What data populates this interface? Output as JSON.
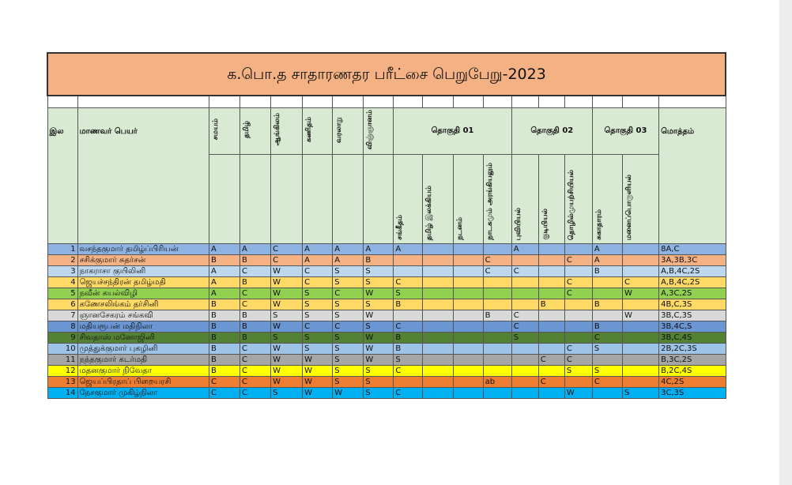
{
  "title": "க.பொ.த சாதாரணதர பரீட்சை பெறுபேறு-2023",
  "headers": {
    "index": "இல",
    "name": "மாணவர் பெயர்",
    "subjects": [
      "சமயம்",
      "தமிழ்",
      "ஆங்கிலம்",
      "கணிதம்",
      "வரலாறு",
      "விஞ்ஞானம்"
    ],
    "group1": "தொகுதி 01",
    "group2": "தொகுதி 02",
    "group3": "தொகுதி 03",
    "total": "மொத்தம்",
    "g1_subjects": [
      "சங்கீதம்",
      "தமிழ் இலக்கியம்",
      "நடனம்",
      "நாடகமும் அரங்கியலும்"
    ],
    "g2_subjects": [
      "புவியியல்",
      "குடியியல்",
      "தொழில்முயற்சியியல்"
    ],
    "g3_subjects": [
      "சுகாதாரம்",
      "மனைப்பொருளியல்"
    ]
  },
  "rows": [
    {
      "no": "1",
      "name": "வசந்தகுமார் தமிழ்ப்பிரியன்",
      "color": "#8db3e2",
      "cells": [
        "A",
        "A",
        "C",
        "A",
        "A",
        "A",
        "A",
        "",
        "",
        "",
        "A",
        "",
        "",
        "A",
        ""
      ],
      "total": "8A,C"
    },
    {
      "no": "2",
      "name": "சசிக்குமார் சுதர்சன்",
      "color": "#f4b183",
      "cells": [
        "B",
        "B",
        "C",
        "A",
        "A",
        "B",
        "",
        "",
        "",
        "C",
        "",
        "",
        "C",
        "A",
        ""
      ],
      "total": "3A,3B,3C"
    },
    {
      "no": "3",
      "name": "நாகராசா குயிலினி",
      "color": "#bdd7ee",
      "cells": [
        "A",
        "C",
        "W",
        "C",
        "S",
        "S",
        "",
        "",
        "",
        "C",
        "C",
        "",
        "",
        "B",
        ""
      ],
      "total": "A,B,4C,2S"
    },
    {
      "no": "4",
      "name": "ஜெயச்சந்திரன் தமிழ்மதி",
      "color": "#ffd966",
      "cells": [
        "A",
        "B",
        "W",
        "C",
        "S",
        "S",
        "C",
        "",
        "",
        "",
        "",
        "",
        "C",
        "",
        "C"
      ],
      "total": "A,B,4C,2S"
    },
    {
      "no": "5",
      "name": "நவீன் கயல்விழி",
      "color": "#92d050",
      "cells": [
        "A",
        "C",
        "W",
        "S",
        "C",
        "W",
        "S",
        "",
        "",
        "",
        "",
        "",
        "C",
        "",
        "W"
      ],
      "total": "A,3C,2S"
    },
    {
      "no": "6",
      "name": "கணேசலிங்கம் தர்சினி",
      "color": "#ffd966",
      "cells": [
        "B",
        "C",
        "W",
        "S",
        "S",
        "S",
        "B",
        "",
        "",
        "",
        "",
        "B",
        "",
        "B",
        ""
      ],
      "total": "4B,C,3S"
    },
    {
      "no": "7",
      "name": "ஞானசேகரம் சங்கவி",
      "color": "#d9d9d9",
      "cells": [
        "B",
        "B",
        "S",
        "S",
        "S",
        "W",
        "",
        "",
        "",
        "B",
        "C",
        "",
        "",
        "",
        "W"
      ],
      "total": "3B,C,3S"
    },
    {
      "no": "8",
      "name": "மதியரூபன் மதிநிலா",
      "color": "#6a96d4",
      "cells": [
        "B",
        "B",
        "W",
        "C",
        "C",
        "S",
        "C",
        "",
        "",
        "",
        "C",
        "",
        "",
        "B",
        ""
      ],
      "total": "3B,4C,S"
    },
    {
      "no": "9",
      "name": "சிவதாஸ் மனோஜினி",
      "color": "#548235",
      "cells": [
        "B",
        "B",
        "S",
        "S",
        "S",
        "W",
        "B",
        "",
        "",
        "",
        "S",
        "",
        "",
        "C",
        ""
      ],
      "total": "3B,C,4S"
    },
    {
      "no": "10",
      "name": "முத்துக்குமார் புகழினி",
      "color": "#9dc3e6",
      "cells": [
        "B",
        "C",
        "W",
        "S",
        "S",
        "W",
        "B",
        "",
        "",
        "",
        "",
        "",
        "C",
        "S",
        ""
      ],
      "total": "2B,2C,3S"
    },
    {
      "no": "11",
      "name": "நந்தகுமார் கடர்மதி",
      "color": "#a6a6a6",
      "cells": [
        "B",
        "C",
        "W",
        "W",
        "S",
        "W",
        "S",
        "",
        "",
        "",
        "",
        "C",
        "C",
        "",
        ""
      ],
      "total": "B,3C,2S"
    },
    {
      "no": "12",
      "name": "மதனகுமார் நிவேதா",
      "color": "#ffff00",
      "cells": [
        "B",
        "C",
        "W",
        "W",
        "S",
        "S",
        "C",
        "",
        "",
        "",
        "",
        "",
        "S",
        "S",
        ""
      ],
      "total": "B,2C,4S"
    },
    {
      "no": "13",
      "name": "ஜெயப்பிரதாப் பிறையரசி",
      "color": "#ed7d31",
      "cells": [
        "C",
        "C",
        "W",
        "W",
        "S",
        "S",
        "",
        "",
        "",
        "ab",
        "",
        "C",
        "",
        "C",
        ""
      ],
      "total": "4C,2S"
    },
    {
      "no": "14",
      "name": "நேசகுமார் முகிழ்நிலா",
      "color": "#00b0f0",
      "cells": [
        "C",
        "C",
        "S",
        "W",
        "W",
        "S",
        "C",
        "",
        "",
        "",
        "",
        "",
        "W",
        "",
        "S"
      ],
      "total": "3C,3S"
    }
  ]
}
